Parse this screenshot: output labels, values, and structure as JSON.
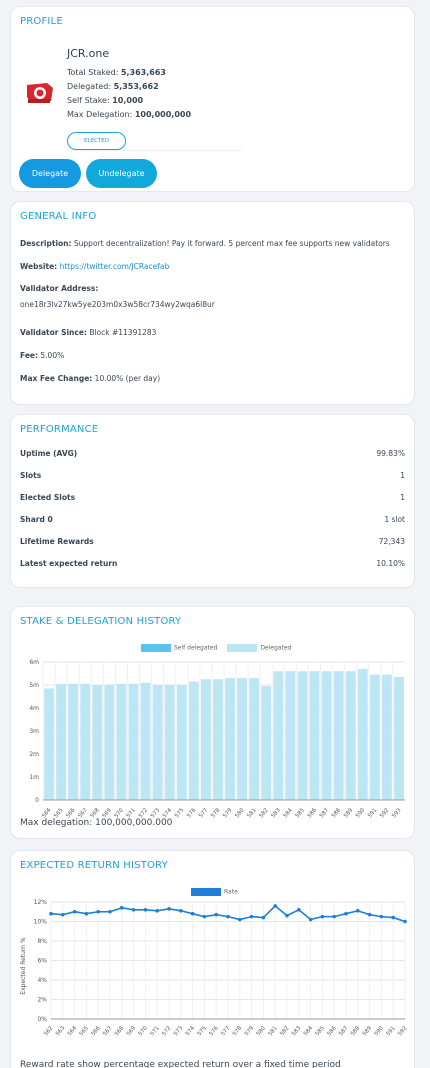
{
  "profile": {
    "title": "PROFILE",
    "name": "JCR.one",
    "total_staked_label": "Total Staked:",
    "total_staked": "5,363,663",
    "delegated_label": "Delegated:",
    "delegated": "5,353,662",
    "self_stake_label": "Self Stake:",
    "self_stake": "10,000",
    "max_delegation_label": "Max Delegation:",
    "max_delegation": "100,000,000",
    "badge": "ELECTED",
    "delegate_label": "Delegate",
    "undelegate_label": "Undelegate"
  },
  "general": {
    "title": "GENERAL INFO",
    "description_label": "Description:",
    "description": "Support decentralization! Pay it forward. 5 percent max fee supports new validators",
    "website_label": "Website:",
    "website": "https://twitter.com/JCRacefab",
    "address_label": "Validator Address:",
    "address": "one18r3lv27kw5ye203m0x3w58cr734wy2wqa6l8ur",
    "since_label": "Validator Since:",
    "since": "Block #11391283",
    "fee_label": "Fee:",
    "fee": "5.00%",
    "max_fee_change_label": "Max Fee Change:",
    "max_fee_change": "10.00% (per day)"
  },
  "performance": {
    "title": "PERFORMANCE",
    "rows": [
      {
        "label": "Uptime (AVG)",
        "value": "99.83%"
      },
      {
        "label": "Slots",
        "value": "1"
      },
      {
        "label": "Elected Slots",
        "value": "1"
      },
      {
        "label": "Shard 0",
        "value": "1 slot"
      },
      {
        "label": "Lifetime Rewards",
        "value": "72,343"
      },
      {
        "label": "Latest expected return",
        "value": "10.10%"
      }
    ]
  },
  "stake_chart": {
    "title": "STAKE & DELEGATION HISTORY",
    "note": "Max delegation: 100,000,000.000"
  },
  "return_chart": {
    "title": "EXPECTED RETURN HISTORY",
    "note": "Reward rate show percentage expected return over a fixed time period"
  },
  "colors": {
    "accent": "#1aa3d6",
    "button": "#1599e0",
    "self_delegated": "#5bc3ec",
    "delegated": "#bde6f5",
    "rate": "#1e7fd6"
  },
  "icons": {
    "logo": "jcr-logo-icon"
  },
  "chart_data": [
    {
      "type": "bar",
      "title": "STAKE & DELEGATION HISTORY",
      "categories": [
        "564",
        "565",
        "566",
        "567",
        "568",
        "569",
        "570",
        "571",
        "572",
        "573",
        "574",
        "575",
        "576",
        "577",
        "578",
        "579",
        "580",
        "581",
        "582",
        "583",
        "584",
        "585",
        "586",
        "587",
        "588",
        "589",
        "590",
        "591",
        "592",
        "593"
      ],
      "series": [
        {
          "name": "Self delegated",
          "values": [
            0.01,
            0.01,
            0.01,
            0.01,
            0.01,
            0.01,
            0.01,
            0.01,
            0.01,
            0.01,
            0.01,
            0.01,
            0.01,
            0.01,
            0.01,
            0.01,
            0.01,
            0.01,
            0.01,
            0.01,
            0.01,
            0.01,
            0.01,
            0.01,
            0.01,
            0.01,
            0.01,
            0.01,
            0.01,
            0.01
          ]
        },
        {
          "name": "Delegated",
          "values": [
            4.85,
            5.05,
            5.05,
            5.05,
            5.0,
            5.0,
            5.05,
            5.05,
            5.1,
            5.0,
            5.0,
            5.0,
            5.15,
            5.25,
            5.25,
            5.3,
            5.3,
            5.3,
            4.95,
            5.6,
            5.6,
            5.6,
            5.6,
            5.6,
            5.6,
            5.6,
            5.7,
            5.45,
            5.45,
            5.35
          ]
        }
      ],
      "yticks": [
        "0",
        "1m",
        "2m",
        "3m",
        "4m",
        "5m",
        "6m"
      ],
      "ylim": [
        0,
        6
      ],
      "legend": "top"
    },
    {
      "type": "line",
      "title": "EXPECTED RETURN HISTORY",
      "categories": [
        "562",
        "563",
        "564",
        "565",
        "566",
        "567",
        "568",
        "569",
        "570",
        "571",
        "572",
        "573",
        "574",
        "575",
        "576",
        "577",
        "578",
        "579",
        "580",
        "581",
        "582",
        "583",
        "584",
        "585",
        "586",
        "587",
        "588",
        "589",
        "590",
        "591",
        "592"
      ],
      "series": [
        {
          "name": "Rate",
          "values": [
            10.8,
            10.7,
            11.0,
            10.8,
            11.0,
            11.0,
            11.4,
            11.2,
            11.2,
            11.1,
            11.3,
            11.1,
            10.8,
            10.5,
            10.7,
            10.5,
            10.2,
            10.5,
            10.4,
            11.6,
            10.6,
            11.2,
            10.2,
            10.5,
            10.5,
            10.8,
            11.1,
            10.7,
            10.5,
            10.4,
            10.0
          ]
        }
      ],
      "ylabel": "Expected Return %",
      "yticks": [
        "0%",
        "2%",
        "4%",
        "6%",
        "8%",
        "10%",
        "12%"
      ],
      "ylim": [
        0,
        12
      ],
      "legend": "top"
    }
  ]
}
